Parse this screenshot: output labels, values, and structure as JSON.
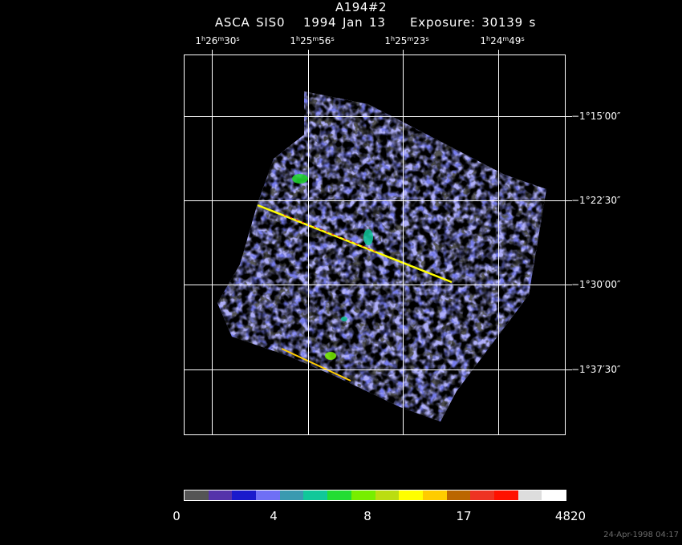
{
  "header": {
    "title": "A194#2",
    "subtitle": "ASCA SIS0   1994 Jan 13    Exposure: 30139 s"
  },
  "ra_axis": {
    "labels": [
      {
        "h": "1",
        "m": "26",
        "s": "30"
      },
      {
        "h": "1",
        "m": "25",
        "s": "56"
      },
      {
        "h": "1",
        "m": "25",
        "s": "23"
      },
      {
        "h": "1",
        "m": "24",
        "s": "49"
      }
    ]
  },
  "dec_axis": {
    "labels": [
      "−1°15′00″",
      "−1°22′30″",
      "−1°30′00″",
      "−1°37′30″"
    ]
  },
  "colorbar": {
    "colors": [
      "#555555",
      "#5533aa",
      "#1a1acc",
      "#6f6ff5",
      "#3a9ab0",
      "#10c89a",
      "#22dd33",
      "#77ee00",
      "#bbdd11",
      "#ffff00",
      "#ffcc00",
      "#bb6600",
      "#ee3322",
      "#ff1100",
      "#dddddd",
      "#ffffff"
    ],
    "ticks": [
      "0",
      "4",
      "8",
      "17",
      "4820"
    ]
  },
  "footer": {
    "timestamp": "24-Apr-1998 04:17"
  }
}
